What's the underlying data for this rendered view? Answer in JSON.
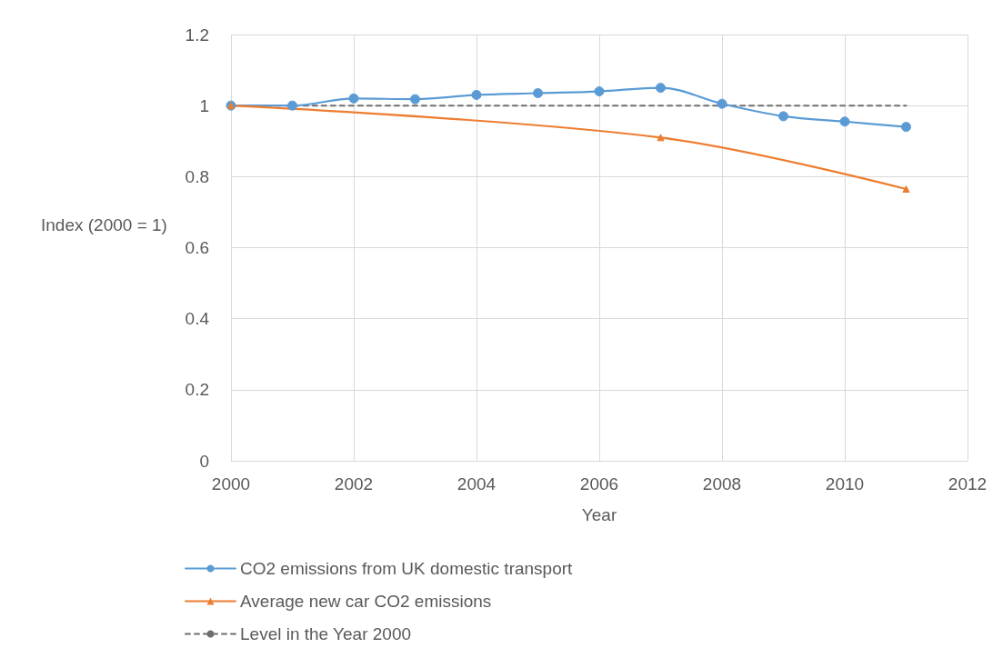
{
  "chart_data": {
    "type": "line",
    "xlabel": "Year",
    "ylabel": "Index (2000 = 1)",
    "xlim": [
      2000,
      2012
    ],
    "xticks": [
      2000,
      2002,
      2004,
      2006,
      2008,
      2010,
      2012
    ],
    "ylim": [
      0,
      1.2
    ],
    "yticks": [
      0,
      0.2,
      0.4,
      0.6,
      0.8,
      1,
      1.2
    ],
    "grid": true,
    "legend": "bottom",
    "series": [
      {
        "name": "CO2 emissions from UK domestic transport",
        "color": "#5b9bd5",
        "marker": "circle",
        "line_style": "solid",
        "x": [
          2000,
          2001,
          2002,
          2003,
          2004,
          2005,
          2006,
          2007,
          2008,
          2009,
          2010,
          2011
        ],
        "values": [
          1.0,
          1.0,
          1.02,
          1.018,
          1.03,
          1.035,
          1.04,
          1.05,
          1.005,
          0.97,
          0.955,
          0.94
        ]
      },
      {
        "name": "Average new car CO2 emissions",
        "color": "#ed7d31",
        "marker": "triangle",
        "line_style": "solid",
        "x": [
          2000,
          2007,
          2011
        ],
        "values": [
          1.0,
          0.91,
          0.765
        ]
      },
      {
        "name": "Level in the Year 2000",
        "color": "#6e6e6e",
        "marker": "none",
        "line_style": "dashed",
        "x": [
          2000,
          2011
        ],
        "values": [
          1,
          1
        ]
      }
    ]
  }
}
